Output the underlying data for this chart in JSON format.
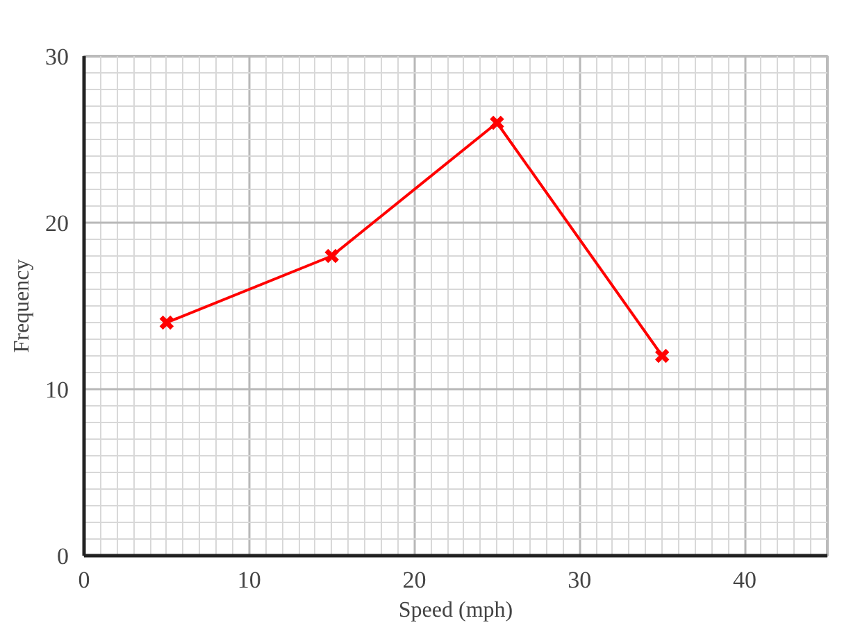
{
  "chart_data": {
    "type": "line",
    "xlabel": "Speed (mph)",
    "ylabel": "Frequency",
    "x": [
      5,
      15,
      25,
      35
    ],
    "series": [
      {
        "color": "#ff0000",
        "values": [
          14,
          18,
          26,
          12
        ]
      }
    ],
    "xlim": [
      0,
      45
    ],
    "ylim": [
      0,
      30
    ],
    "xticks": [
      0,
      10,
      20,
      30,
      40
    ],
    "yticks": [
      0,
      10,
      20,
      30
    ],
    "grid": true,
    "marker": "cross",
    "line_style": "solid"
  }
}
